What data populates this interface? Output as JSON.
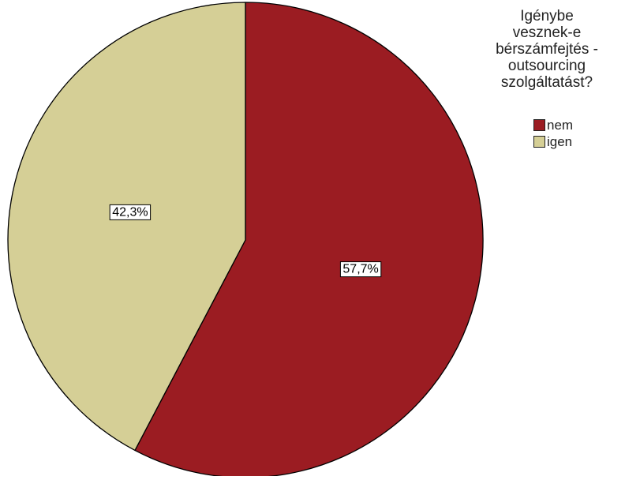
{
  "chart_data": {
    "type": "pie",
    "title": "",
    "legend_title_lines": [
      "Igénybe",
      "vesznek-e",
      "bérszámfejtés -",
      "outsourcing",
      "szolgáltatást?"
    ],
    "legend_position": "top-right",
    "start_angle_deg": 0,
    "direction": "clockwise",
    "slices": [
      {
        "label": "nem",
        "value": 57.7,
        "value_label": "57,7%",
        "color": "#9b1c22"
      },
      {
        "label": "igen",
        "value": 42.3,
        "value_label": "42,3%",
        "color": "#d5cf96"
      }
    ]
  }
}
